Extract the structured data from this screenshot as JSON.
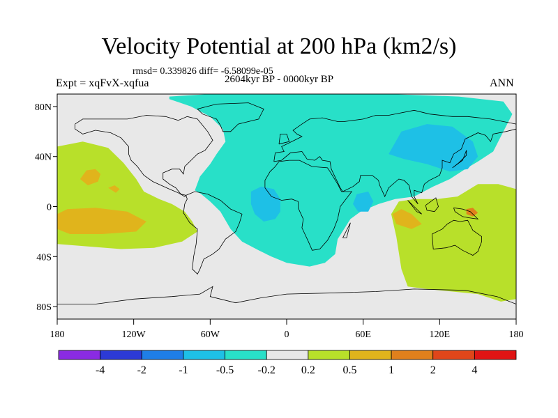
{
  "chart_data": {
    "type": "heatmap",
    "title": "Velocity Potential at 200 hPa (km2/s)",
    "subtitle": "rmsd= 0.339826 diff= -6.58099e-05",
    "period": "2604kyr BP - 0000kyr BP",
    "left_label": "Expt = xqFvX-xqfua",
    "right_label": "ANN",
    "x_ticks": [
      "180",
      "120W",
      "60W",
      "0",
      "60E",
      "120E",
      "180"
    ],
    "x_tick_lons": [
      -180,
      -120,
      -60,
      0,
      60,
      120,
      180
    ],
    "y_ticks": [
      "80N",
      "40N",
      "0",
      "40S",
      "80S"
    ],
    "y_tick_lats": [
      80,
      40,
      0,
      -40,
      -80
    ],
    "xlim": [
      -180,
      180
    ],
    "ylim": [
      -90,
      90
    ],
    "colorbar": {
      "labels": [
        "-4",
        "-2",
        "-1",
        "-0.5",
        "-0.2",
        "0.2",
        "0.5",
        "1",
        "2",
        "4"
      ],
      "colors": [
        "#8a2be2",
        "#2c3ad6",
        "#1f7ee6",
        "#1ec0e6",
        "#28e0c8",
        "#e8e8e8",
        "#b8e02a",
        "#e0b41c",
        "#e0801c",
        "#e0461a",
        "#e01414"
      ]
    },
    "regions": [
      {
        "level": "-0.2",
        "color": "#28e0c8",
        "polygon": [
          [
            -92,
            88
          ],
          [
            -60,
            90
          ],
          [
            20,
            90
          ],
          [
            80,
            90
          ],
          [
            135,
            88
          ],
          [
            170,
            84
          ],
          [
            177,
            74
          ],
          [
            170,
            60
          ],
          [
            162,
            44
          ],
          [
            150,
            36
          ],
          [
            140,
            30
          ],
          [
            128,
            22
          ],
          [
            115,
            16
          ],
          [
            100,
            8
          ],
          [
            85,
            6
          ],
          [
            72,
            2
          ],
          [
            58,
            -4
          ],
          [
            50,
            -10
          ],
          [
            45,
            -18
          ],
          [
            40,
            -26
          ],
          [
            38,
            -38
          ],
          [
            30,
            -45
          ],
          [
            18,
            -48
          ],
          [
            0,
            -45
          ],
          [
            -12,
            -40
          ],
          [
            -22,
            -35
          ],
          [
            -35,
            -28
          ],
          [
            -44,
            -18
          ],
          [
            -52,
            -4
          ],
          [
            -60,
            4
          ],
          [
            -67,
            10
          ],
          [
            -72,
            13
          ],
          [
            -68,
            24
          ],
          [
            -60,
            34
          ],
          [
            -55,
            42
          ],
          [
            -48,
            52
          ],
          [
            -50,
            62
          ],
          [
            -60,
            72
          ],
          [
            -75,
            80
          ],
          [
            -92,
            86
          ]
        ]
      },
      {
        "level": "-0.5",
        "color": "#1ec0e6",
        "polygon": [
          [
            -28,
            12
          ],
          [
            -20,
            16
          ],
          [
            -10,
            14
          ],
          [
            -5,
            6
          ],
          [
            -5,
            -4
          ],
          [
            -9,
            -10
          ],
          [
            -18,
            -12
          ],
          [
            -25,
            -6
          ],
          [
            -28,
            2
          ]
        ]
      },
      {
        "level": "-0.5",
        "color": "#1ec0e6",
        "polygon": [
          [
            55,
            10
          ],
          [
            64,
            12
          ],
          [
            68,
            4
          ],
          [
            64,
            -4
          ],
          [
            56,
            -4
          ],
          [
            52,
            2
          ]
        ]
      },
      {
        "level": "-0.5",
        "color": "#1ec0e6",
        "polygon": [
          [
            80,
            42
          ],
          [
            90,
            60
          ],
          [
            110,
            66
          ],
          [
            130,
            64
          ],
          [
            146,
            52
          ],
          [
            150,
            40
          ],
          [
            142,
            30
          ],
          [
            128,
            28
          ],
          [
            110,
            34
          ],
          [
            92,
            38
          ]
        ]
      },
      {
        "level": "0.2",
        "color": "#b8e02a",
        "polygon": [
          [
            -180,
            48
          ],
          [
            -160,
            52
          ],
          [
            -140,
            47
          ],
          [
            -128,
            35
          ],
          [
            -118,
            22
          ],
          [
            -112,
            12
          ],
          [
            -100,
            6
          ],
          [
            -90,
            2
          ],
          [
            -80,
            -4
          ],
          [
            -74,
            -12
          ],
          [
            -70,
            -20
          ],
          [
            -82,
            -28
          ],
          [
            -104,
            -33
          ],
          [
            -130,
            -34
          ],
          [
            -155,
            -32
          ],
          [
            -180,
            -30
          ]
        ]
      },
      {
        "level": "0.2",
        "color": "#b8e02a",
        "polygon": [
          [
            82,
            -6
          ],
          [
            88,
            4
          ],
          [
            100,
            6
          ],
          [
            118,
            6
          ],
          [
            134,
            8
          ],
          [
            150,
            18
          ],
          [
            166,
            18
          ],
          [
            180,
            14
          ],
          [
            180,
            -74
          ],
          [
            168,
            -76
          ],
          [
            150,
            -70
          ],
          [
            110,
            -66
          ],
          [
            95,
            -64
          ],
          [
            90,
            -50
          ],
          [
            86,
            -24
          ]
        ]
      },
      {
        "level": "0.5",
        "color": "#e0b41c",
        "polygon": [
          [
            -162,
            22
          ],
          [
            -157,
            29
          ],
          [
            -150,
            30
          ],
          [
            -146,
            26
          ],
          [
            -148,
            20
          ],
          [
            -156,
            17
          ]
        ]
      },
      {
        "level": "0.5",
        "color": "#e0b41c",
        "polygon": [
          [
            -140,
            15
          ],
          [
            -135,
            17
          ],
          [
            -131,
            14
          ],
          [
            -134,
            11
          ]
        ]
      },
      {
        "level": "0.5",
        "color": "#e0b41c",
        "polygon": [
          [
            -180,
            -6
          ],
          [
            -172,
            -2
          ],
          [
            -150,
            -1
          ],
          [
            -125,
            -4
          ],
          [
            -110,
            -12
          ],
          [
            -118,
            -20
          ],
          [
            -145,
            -22
          ],
          [
            -170,
            -22
          ],
          [
            -180,
            -18
          ]
        ]
      },
      {
        "level": "0.5",
        "color": "#e0b41c",
        "polygon": [
          [
            83,
            -6
          ],
          [
            90,
            -2
          ],
          [
            98,
            -6
          ],
          [
            106,
            -14
          ],
          [
            98,
            -18
          ],
          [
            86,
            -14
          ]
        ]
      },
      {
        "level": "1",
        "color": "#e0801c",
        "polygon": [
          [
            141,
            -2
          ],
          [
            146,
            -1
          ],
          [
            150,
            -5
          ],
          [
            146,
            -8
          ],
          [
            141,
            -6
          ]
        ]
      }
    ]
  }
}
